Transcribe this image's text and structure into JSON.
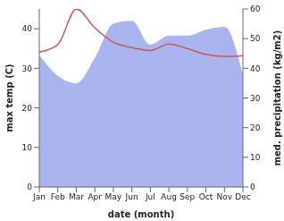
{
  "chart_data": {
    "type": "line",
    "xlabel": "date (month)",
    "ylabel": "max temp (C)",
    "y2label": "med. precipitation (kg/m2)",
    "categories": [
      "Jan",
      "Feb",
      "Mar",
      "Apr",
      "May",
      "Jun",
      "Jul",
      "Aug",
      "Sep",
      "Oct",
      "Nov",
      "Dec"
    ],
    "ylim": [
      0,
      45
    ],
    "yticks": [
      0,
      10,
      20,
      30,
      40
    ],
    "y2lim": [
      0,
      60
    ],
    "y2ticks": [
      0,
      10,
      20,
      30,
      40,
      50,
      60
    ],
    "series": [
      {
        "name": "med. precipitation",
        "type": "area",
        "axis": "y2",
        "color": "#aab5f0",
        "values": [
          44.5,
          37.5,
          35,
          43.5,
          55,
          56,
          48,
          51,
          51,
          53,
          54,
          38
        ]
      },
      {
        "name": "max temp",
        "type": "line",
        "color": "#c8585a",
        "values": [
          34.1,
          36,
          45,
          40.2,
          36.6,
          35.2,
          34.5,
          36.1,
          35,
          33.5,
          33,
          33.2
        ]
      }
    ]
  }
}
